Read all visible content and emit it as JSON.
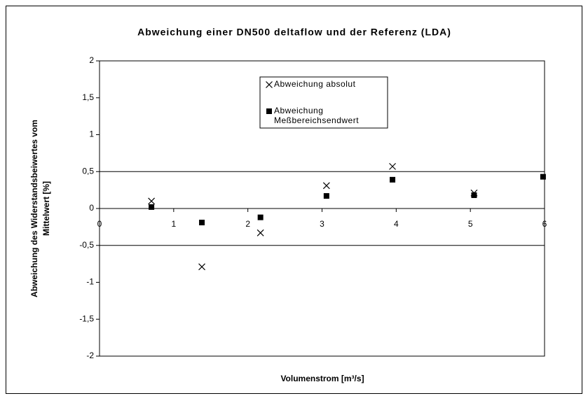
{
  "chart_data": {
    "type": "scatter",
    "title": "Abweichung einer DN500 deltaflow und der Referenz (LDA)",
    "x_label": "Volumenstrom [m³/s]",
    "y_label": [
      "Abweichung des Widerstandsbeiwertes vom",
      "Mittelwert [%]"
    ],
    "xlim": [
      0,
      6
    ],
    "xticks": [
      0,
      1,
      2,
      3,
      4,
      5,
      6
    ],
    "ylim": [
      -2,
      2
    ],
    "yticks": [
      2,
      {
        "value": 1.5,
        "label": "1,5"
      },
      1,
      {
        "value": 0.5,
        "label": "0,5"
      },
      0,
      {
        "value": -0.5,
        "label": "-0,5"
      },
      -1,
      {
        "value": -1.5,
        "label": "-1,5"
      },
      -2
    ],
    "grid_lines": [
      0.5,
      -0.5
    ],
    "series": [
      {
        "name": "Abweichung absolut",
        "marker": "x",
        "color": "#000000",
        "x": [
          0.7,
          1.38,
          2.17,
          3.06,
          3.95,
          5.05
        ],
        "values": [
          0.1,
          -0.79,
          -0.33,
          0.31,
          0.57,
          0.21
        ]
      },
      {
        "name": [
          "Abweichung",
          "Meßbereichsendwert"
        ],
        "marker": "square",
        "color": "#000000",
        "x": [
          0.7,
          1.38,
          2.17,
          3.06,
          3.95,
          5.05,
          5.98
        ],
        "values": [
          0.02,
          -0.19,
          -0.12,
          0.17,
          0.39,
          0.18,
          0.43
        ]
      }
    ]
  }
}
